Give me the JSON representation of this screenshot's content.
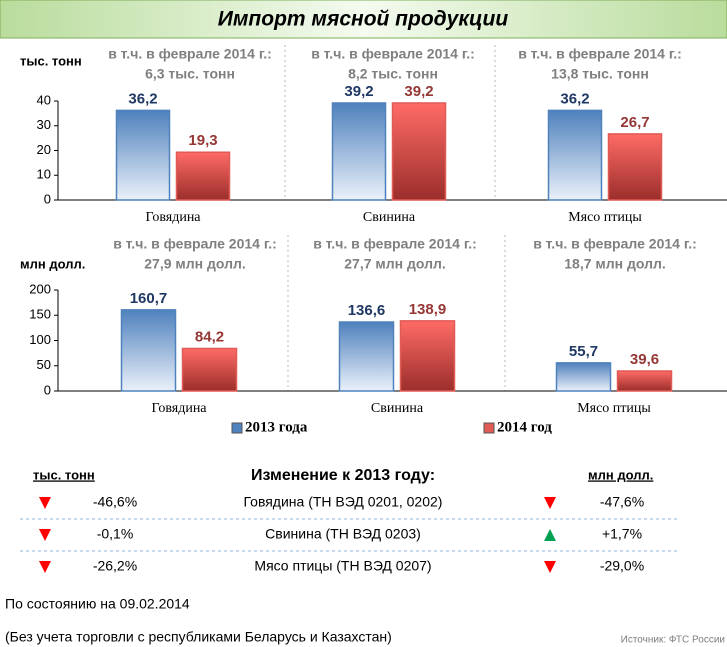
{
  "title": "Импорт мясной продукции",
  "chart_data": [
    {
      "type": "bar",
      "ylabel": "тыс. тонн",
      "categories": [
        "Говядина",
        "Свинина",
        "Мясо птицы"
      ],
      "annotations": [
        [
          "в т.ч. в феврале 2014 г.:",
          "6,3 тыс. тонн"
        ],
        [
          "в т.ч. в феврале 2014 г.:",
          "8,2 тыс. тонн"
        ],
        [
          "в т.ч. в феврале 2014 г.:",
          "13,8 тыс. тонн"
        ]
      ],
      "series": [
        {
          "color": "#4f81bd",
          "label_color": "#1f3864",
          "values": [
            36.2,
            39.2,
            36.2
          ],
          "value_labels": [
            "36,2",
            "39,2",
            "36,2"
          ]
        },
        {
          "color": "#e05a56",
          "label_color": "#953735",
          "values": [
            19.3,
            39.2,
            26.7
          ],
          "value_labels": [
            "19,3",
            "39,2",
            "26,7"
          ]
        }
      ],
      "ylim": [
        0,
        40
      ],
      "yticks": [
        0,
        10,
        20,
        30,
        40
      ]
    },
    {
      "type": "bar",
      "ylabel": "млн долл.",
      "categories": [
        "Говядина",
        "Свинина",
        "Мясо птицы"
      ],
      "annotations": [
        [
          "в  т.ч. в феврале 2014 г.:",
          "27,9 млн долл."
        ],
        [
          "в т.ч. в феврале 2014 г.:",
          "27,7 млн долл."
        ],
        [
          "в т.ч. в феврале 2014 г.:",
          "18,7 млн долл."
        ]
      ],
      "series": [
        {
          "name": "2013 года",
          "color": "#4f81bd",
          "label_color": "#1f3864",
          "values": [
            160.7,
            136.6,
            55.7
          ],
          "value_labels": [
            "160,7",
            "136,6",
            "55,7"
          ]
        },
        {
          "name": "2014 год",
          "color": "#e05a56",
          "label_color": "#953735",
          "values": [
            84.2,
            138.9,
            39.6
          ],
          "value_labels": [
            "84,2",
            "138,9",
            "39,6"
          ]
        }
      ],
      "ylim": [
        0,
        200
      ],
      "yticks": [
        0,
        50,
        100,
        150,
        200
      ],
      "legend": "bottom"
    }
  ],
  "table": {
    "headers": [
      "тыс. тонн",
      "Изменение к 2013 году:",
      "млн долл."
    ],
    "rows": [
      {
        "left_trend": "down",
        "left": "-46,6%",
        "label": "Говядина (ТН ВЭД 0201, 0202)",
        "right_trend": "down",
        "right": "-47,6%"
      },
      {
        "left_trend": "down",
        "left": "-0,1%",
        "label": "Свинина (ТН ВЭД 0203)",
        "right_trend": "up",
        "right": "+1,7%"
      },
      {
        "left_trend": "down",
        "left": "-26,2%",
        "label": "Мясо птицы (ТН ВЭД 0207)",
        "right_trend": "down",
        "right": "-29,0%"
      }
    ]
  },
  "as_of": "По состоянию на  09.02.2014",
  "note": "(Без учета торговли с республиками Беларусь и Казахстан)",
  "source": "Источник: ФТС России"
}
